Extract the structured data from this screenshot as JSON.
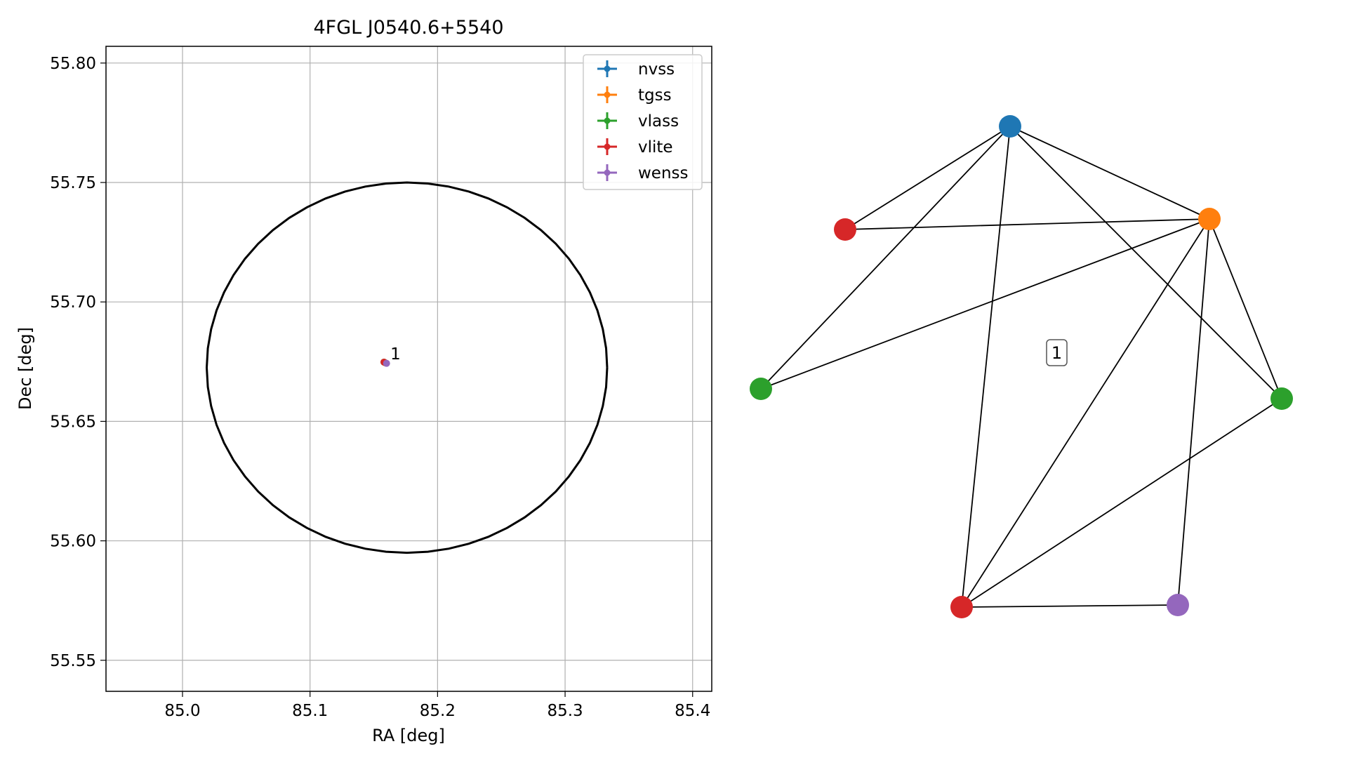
{
  "chart_data": [
    {
      "type": "scatter",
      "title": "4FGL J0540.6+5540",
      "xlabel": "RA [deg]",
      "ylabel": "Dec [deg]",
      "xlim": [
        84.94,
        85.415
      ],
      "ylim": [
        55.537,
        55.807
      ],
      "xticks": [
        85.0,
        85.1,
        85.2,
        85.3,
        85.4
      ],
      "yticks": [
        55.55,
        55.6,
        55.65,
        55.7,
        55.75,
        55.8
      ],
      "xtick_labels": [
        "85.0",
        "85.1",
        "85.2",
        "85.3",
        "85.4"
      ],
      "ytick_labels": [
        "55.55",
        "55.60",
        "55.65",
        "55.70",
        "55.75",
        "55.80"
      ],
      "grid": true,
      "legend_position": "top-right",
      "ellipse": {
        "center_ra": 85.176,
        "center_dec": 55.6725,
        "semi_axis_ra": 0.157,
        "semi_axis_dec": 0.0775
      },
      "series": [
        {
          "name": "nvss",
          "color": "#1f77b4",
          "x": [
            85.159
          ],
          "y": [
            55.6745
          ]
        },
        {
          "name": "tgss",
          "color": "#ff7f0e",
          "x": [
            85.159
          ],
          "y": [
            55.6745
          ]
        },
        {
          "name": "vlass",
          "color": "#2ca02c",
          "x": [
            85.158
          ],
          "y": [
            55.6748
          ]
        },
        {
          "name": "vlite",
          "color": "#d62728",
          "x": [
            85.158
          ],
          "y": [
            55.6748
          ]
        },
        {
          "name": "wenss",
          "color": "#9467bd",
          "x": [
            85.16
          ],
          "y": [
            55.6743
          ]
        }
      ],
      "annotations": [
        {
          "text": "1",
          "x": 85.163,
          "y": 55.6783
        }
      ]
    },
    {
      "type": "network",
      "label": "1",
      "nodes": [
        {
          "id": "nvss",
          "color": "#1f77b4"
        },
        {
          "id": "tgss",
          "color": "#ff7f0e"
        },
        {
          "id": "vlite_a",
          "color": "#d62728"
        },
        {
          "id": "vlass_a",
          "color": "#2ca02c"
        },
        {
          "id": "vlass_b",
          "color": "#2ca02c"
        },
        {
          "id": "vlite_b",
          "color": "#d62728"
        },
        {
          "id": "wenss",
          "color": "#9467bd"
        }
      ],
      "edges": [
        [
          "nvss",
          "vlite_a"
        ],
        [
          "nvss",
          "tgss"
        ],
        [
          "nvss",
          "vlass_a"
        ],
        [
          "nvss",
          "vlite_b"
        ],
        [
          "nvss",
          "vlass_b"
        ],
        [
          "vlite_a",
          "tgss"
        ],
        [
          "tgss",
          "vlass_a"
        ],
        [
          "tgss",
          "vlite_b"
        ],
        [
          "tgss",
          "vlass_b"
        ],
        [
          "tgss",
          "wenss"
        ],
        [
          "vlass_b",
          "vlite_b"
        ],
        [
          "vlite_b",
          "wenss"
        ]
      ]
    }
  ]
}
